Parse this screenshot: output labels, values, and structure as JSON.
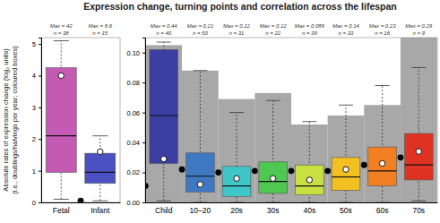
{
  "chart_data": [
    {
      "type": "box",
      "title": "Expression change, turning points and correlation across the lifespan",
      "y_label": "Absolute rates of expression change (log₂ units)",
      "y_label_note": "(i.e., doublings/halvings per year; coloured boxes)",
      "categories": [
        "Fetal",
        "Infant"
      ],
      "ylim": [
        0,
        5.2
      ],
      "yticks": [
        0,
        1,
        2,
        3,
        4,
        5
      ],
      "whisker_low": [
        0.1,
        0.05
      ],
      "q1": [
        0.95,
        0.6
      ],
      "median": [
        2.1,
        0.95
      ],
      "q3": [
        4.25,
        1.55
      ],
      "whisker_high": [
        5.1,
        2.1
      ],
      "mean": [
        4.0,
        1.6
      ],
      "turning_points": [
        null,
        0.05
      ],
      "colors": [
        "#c55ab5",
        "#4b50c2"
      ],
      "max_labels": [
        "Max = 42",
        "Max = 8.6"
      ],
      "n_labels": [
        "n = 38",
        "n = 15"
      ]
    },
    {
      "type": "box",
      "categories": [
        "Child",
        "10–20",
        "20s",
        "30s",
        "40s",
        "50s",
        "60s",
        "70s"
      ],
      "ylim": [
        0,
        0.11
      ],
      "yticks": [
        {
          "value": 0,
          "label": "0.00"
        },
        0.02,
        0.04,
        0.06,
        0.08,
        {
          "value": 0.1,
          "label": "0.10"
        }
      ],
      "background_values": [
        0.105,
        0.088,
        0.069,
        0.073,
        0.052,
        0.058,
        0.065,
        0.11
      ],
      "whisker_low": [
        0.001,
        0,
        0,
        0,
        0,
        0,
        0,
        0.001
      ],
      "q1": [
        0.026,
        0.007,
        0.004,
        0.006,
        0.005,
        0.008,
        0.011,
        0.015
      ],
      "median": [
        0.058,
        0.0175,
        0.011,
        0.014,
        0.011,
        0.017,
        0.021,
        0.025
      ],
      "q3": [
        0.102,
        0.033,
        0.024,
        0.027,
        0.025,
        0.03,
        0.037,
        0.046
      ],
      "whisker_high": [
        0.107,
        0.088,
        0.06,
        0.068,
        0.054,
        0.065,
        0.078,
        0.09
      ],
      "mean": [
        0.029,
        0.012,
        0.016,
        0.016,
        0.015,
        0.022,
        0.026,
        0.034
      ],
      "turning_points": [
        0.011,
        0.022,
        0.02,
        0.021,
        0.021,
        0.021,
        0.025,
        0.03
      ],
      "colors": [
        "#3a3ea2",
        "#3f78c2",
        "#3ec6c8",
        "#4fc851",
        "#c9e042",
        "#f2c021",
        "#f28022",
        "#e03222"
      ],
      "max_labels": [
        "Max = 0.44",
        "Max = 0.21",
        "Max = 0.12",
        "Max = 0.12",
        "Max = 0.089",
        "Max = 0.14",
        "Max = 0.23",
        "Max = 0.29"
      ],
      "n_labels": [
        "n = 40",
        "n = 50",
        "n = 31",
        "n = 22",
        "n = 39",
        "n = 33",
        "n = 16",
        "n = 9"
      ]
    }
  ]
}
